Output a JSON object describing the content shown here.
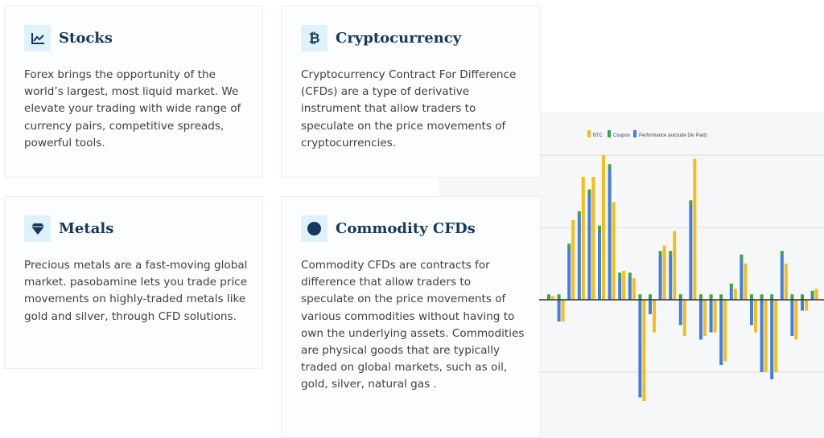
{
  "cards": [
    {
      "title": "Stocks",
      "icon": "line-chart-icon",
      "body": "Forex brings the opportunity of the world’s largest, most liquid market. We elevate your trading with wide range of currency pairs, competitive spreads, powerful tools."
    },
    {
      "title": "Cryptocurrency",
      "icon": "bitcoin-icon",
      "body": "Cryptocurrency Contract For Difference (CFDs) are a type of derivative instrument that allow traders to speculate on the price movements of cryptocurrencies."
    },
    {
      "title": "Metals",
      "icon": "diamond-icon",
      "body": "Precious metals are a fast-moving global market. pasobamine lets you trade price movements on highly-traded metals like gold and silver, through CFD solutions."
    },
    {
      "title": "Commodity CFDs",
      "icon": "circle-icon",
      "body": "Commodity CFDs are contracts for difference that allow traders to speculate on the price movements of various commodities without having to own the underlying assets. Commodities are physical goods that are typically traded on global markets, such as oil, gold, silver, natural gas ."
    }
  ],
  "colors": {
    "title": "#16385a",
    "icon_bg": "#dff2fb",
    "btc": "#f6bd16",
    "coupon": "#3ea34a",
    "performance": "#3f7fe0"
  },
  "chart_data": {
    "type": "bar",
    "legend": [
      "BTC",
      "Coupon",
      "Performance (exclude Div Paid)"
    ],
    "legend_position": "top",
    "grid": true,
    "series": [
      {
        "name": "Performance (exclude Div Paid)",
        "values": [
          0,
          -6,
          14,
          23,
          29,
          19,
          36,
          6,
          6,
          -27,
          -4,
          12,
          12,
          -7,
          26,
          -11,
          -9,
          -18,
          3,
          11,
          -7,
          -20,
          -22,
          12,
          -10,
          -3,
          1
        ]
      },
      {
        "name": "Coupon",
        "values": [
          1.5,
          1.5,
          1.5,
          1.5,
          1.5,
          1.5,
          1.5,
          1.5,
          1.5,
          1.5,
          1.5,
          1.5,
          1.5,
          1.5,
          1.5,
          1.5,
          1.5,
          1.5,
          1.5,
          1.5,
          1.5,
          1.5,
          1.5,
          1.5,
          1.5,
          1.5,
          1.5
        ]
      },
      {
        "name": "BTC",
        "values": [
          1,
          -6,
          22,
          34,
          34,
          40,
          27,
          8,
          6,
          -28,
          -9,
          15,
          19,
          -10,
          39,
          -10,
          -9,
          -17,
          3,
          10,
          -9,
          -20,
          -20,
          10,
          -11,
          -3,
          3
        ]
      }
    ]
  }
}
